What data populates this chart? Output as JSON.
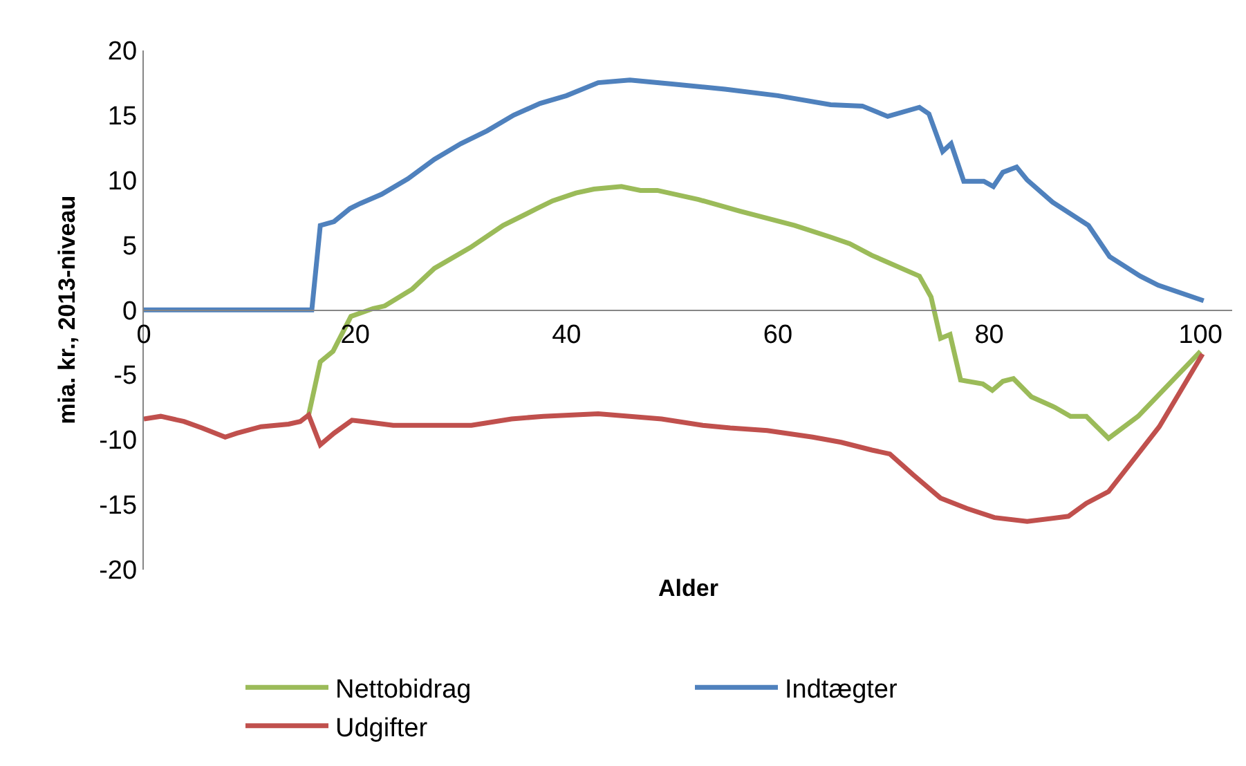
{
  "chart_data": {
    "type": "line",
    "xlabel": "Alder",
    "ylabel": "mia. kr., 2013-niveau",
    "xlim": [
      0,
      103
    ],
    "xticks": [
      0,
      20,
      40,
      60,
      80,
      100
    ],
    "ylim": [
      -20,
      20
    ],
    "yticks": [
      -20,
      -15,
      -10,
      -5,
      0,
      5,
      10,
      15,
      20
    ],
    "grid": false,
    "legend": "bottom",
    "marker": "none",
    "line_style": "solid",
    "series": [
      {
        "name": "Nettobidrag",
        "color": "#9bbb59",
        "x": [
          15.6,
          16.7,
          17.9,
          19.6,
          21.7,
          22.8,
          25.4,
          27.5,
          30.9,
          34,
          37.2,
          38.7,
          40.9,
          42.6,
          45.2,
          47,
          48.6,
          52.5,
          56.4,
          61.6,
          65,
          66.8,
          68.9,
          73.4,
          74.5,
          75.4,
          76.3,
          77.3,
          79.4,
          80.3,
          81.3,
          82.3,
          84,
          86.2,
          87.7,
          89.2,
          91.3,
          94.1,
          100
        ],
        "values": [
          -8.1,
          -4.0,
          -3.2,
          -0.5,
          0.1,
          0.3,
          1.6,
          3.2,
          4.8,
          6.5,
          7.8,
          8.4,
          9.0,
          9.3,
          9.5,
          9.2,
          9.2,
          8.5,
          7.6,
          6.5,
          5.6,
          5.1,
          4.2,
          2.6,
          1.0,
          -2.2,
          -1.9,
          -5.4,
          -5.7,
          -6.2,
          -5.5,
          -5.3,
          -6.7,
          -7.5,
          -8.2,
          -8.2,
          -9.9,
          -8.2,
          -3.2
        ]
      },
      {
        "name": "Indtægter",
        "color": "#4f81bd",
        "x": [
          0,
          15.9,
          16.7,
          18,
          19.5,
          20.5,
          22.5,
          25,
          27.5,
          30,
          32.5,
          35,
          37.5,
          40,
          43,
          46,
          48.6,
          50,
          55,
          60,
          65,
          68,
          70.4,
          73.4,
          74.3,
          75.6,
          76.4,
          77.6,
          79.5,
          80.4,
          81.3,
          82.6,
          83.6,
          86,
          89.4,
          91.4,
          94.3,
          96,
          100.3
        ],
        "values": [
          0,
          0,
          6.5,
          6.8,
          7.8,
          8.2,
          8.9,
          10.1,
          11.6,
          12.8,
          13.8,
          15.0,
          15.9,
          16.5,
          17.5,
          17.7,
          17.5,
          17.4,
          17.0,
          16.5,
          15.8,
          15.7,
          14.9,
          15.6,
          15.1,
          12.2,
          12.8,
          9.9,
          9.9,
          9.5,
          10.6,
          11.0,
          10.0,
          8.3,
          6.5,
          4.1,
          2.6,
          1.9,
          0.7
        ]
      },
      {
        "name": "Udgifter",
        "color": "#c0504d",
        "x": [
          0,
          1.6,
          3.8,
          5.5,
          7.7,
          8.8,
          11.1,
          13.7,
          14.8,
          15.6,
          16.7,
          18,
          19.7,
          20.8,
          23.6,
          31,
          34.8,
          37.8,
          43,
          49,
          52.9,
          55.5,
          59,
          63.3,
          66,
          68.9,
          70.6,
          72.8,
          75.4,
          77.9,
          80.5,
          83.6,
          87.5,
          89.2,
          91.3,
          93.9,
          96.1,
          100.2
        ],
        "values": [
          -8.4,
          -8.2,
          -8.6,
          -9.1,
          -9.8,
          -9.5,
          -9.0,
          -8.8,
          -8.6,
          -8.1,
          -10.4,
          -9.5,
          -8.5,
          -8.6,
          -8.9,
          -8.9,
          -8.4,
          -8.2,
          -8.0,
          -8.4,
          -8.9,
          -9.1,
          -9.3,
          -9.8,
          -10.2,
          -10.8,
          -11.1,
          -12.7,
          -14.5,
          -15.3,
          -16.0,
          -16.3,
          -15.9,
          -14.9,
          -14.0,
          -11.3,
          -9.0,
          -3.4
        ]
      }
    ]
  }
}
